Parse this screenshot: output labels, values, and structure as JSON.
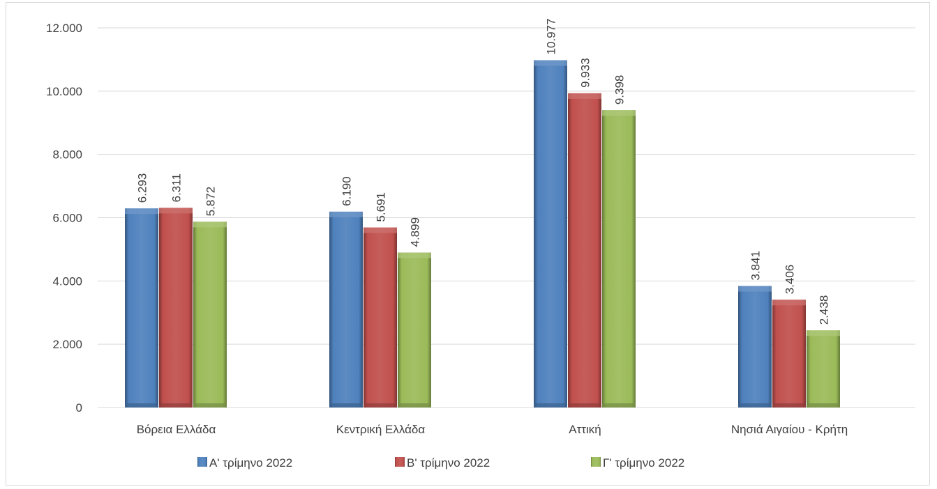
{
  "chart_data": {
    "type": "bar",
    "title": "",
    "xlabel": "",
    "ylabel": "",
    "ylim": [
      0,
      12000
    ],
    "yticks": [
      0,
      2000,
      4000,
      6000,
      8000,
      10000,
      12000
    ],
    "ytick_labels": [
      "0",
      "2.000",
      "4.000",
      "6.000",
      "8.000",
      "10.000",
      "12.000"
    ],
    "grid": true,
    "legend_position": "bottom",
    "categories": [
      "Βόρεια Ελλάδα",
      "Κεντρική Ελλάδα",
      "Αττική",
      "Νησιά Αιγαίου - Κρήτη"
    ],
    "series": [
      {
        "name": "Α' τρίμηνο 2022",
        "color": "#4f81bd",
        "values": [
          6293,
          6190,
          10977,
          3841
        ],
        "labels": [
          "6.293",
          "6.190",
          "10.977",
          "3.841"
        ]
      },
      {
        "name": "Β' τρίμηνο 2022",
        "color": "#c0504d",
        "values": [
          6311,
          5691,
          9933,
          3406
        ],
        "labels": [
          "6.311",
          "5.691",
          "9.933",
          "3.406"
        ]
      },
      {
        "name": "Γ' τρίμηνο 2022",
        "color": "#9bbb59",
        "values": [
          5872,
          4899,
          9398,
          2438
        ],
        "labels": [
          "5.872",
          "4.899",
          "9.398",
          "2.438"
        ]
      }
    ]
  }
}
